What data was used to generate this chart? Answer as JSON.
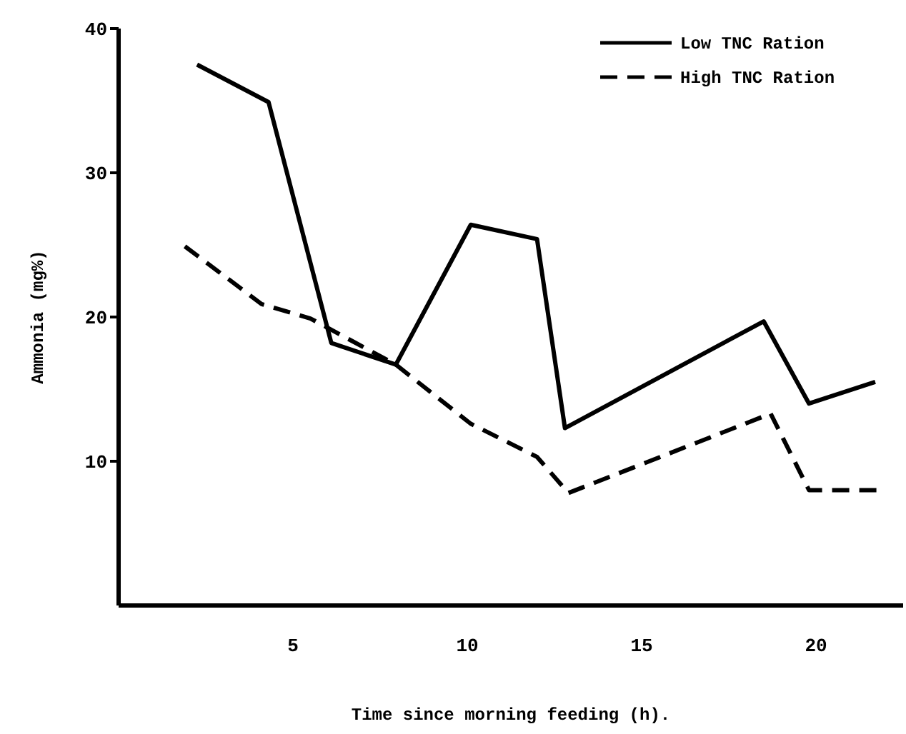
{
  "chart_data": {
    "type": "line",
    "xlabel": "Time since morning feeding (h).",
    "ylabel": "Ammonia (mg%)",
    "xlim": [
      0,
      22.5
    ],
    "ylim": [
      0,
      40
    ],
    "xticks": [
      5,
      10,
      15,
      20
    ],
    "yticks": [
      10,
      20,
      30,
      40
    ],
    "legend": "top right",
    "grid": false,
    "marker": "none",
    "series": [
      {
        "name": "Low TNC Ration",
        "color": "#000000",
        "line_style": "solid",
        "x": [
          2.25,
          4.3,
          6.1,
          7.95,
          10.1,
          12.0,
          12.8,
          18.5,
          19.8,
          21.7
        ],
        "values": [
          37.5,
          34.9,
          18.2,
          16.7,
          26.4,
          25.4,
          12.3,
          19.7,
          14.0,
          15.5
        ]
      },
      {
        "name": "High TNC Ration",
        "color": "#000000",
        "line_style": "dashed",
        "x": [
          1.9,
          4.1,
          5.5,
          7.95,
          10.1,
          12.0,
          12.9,
          18.7,
          19.8,
          21.9
        ],
        "values": [
          24.9,
          20.9,
          19.9,
          16.7,
          12.6,
          10.3,
          7.8,
          13.3,
          8.0,
          8.0
        ]
      }
    ]
  }
}
